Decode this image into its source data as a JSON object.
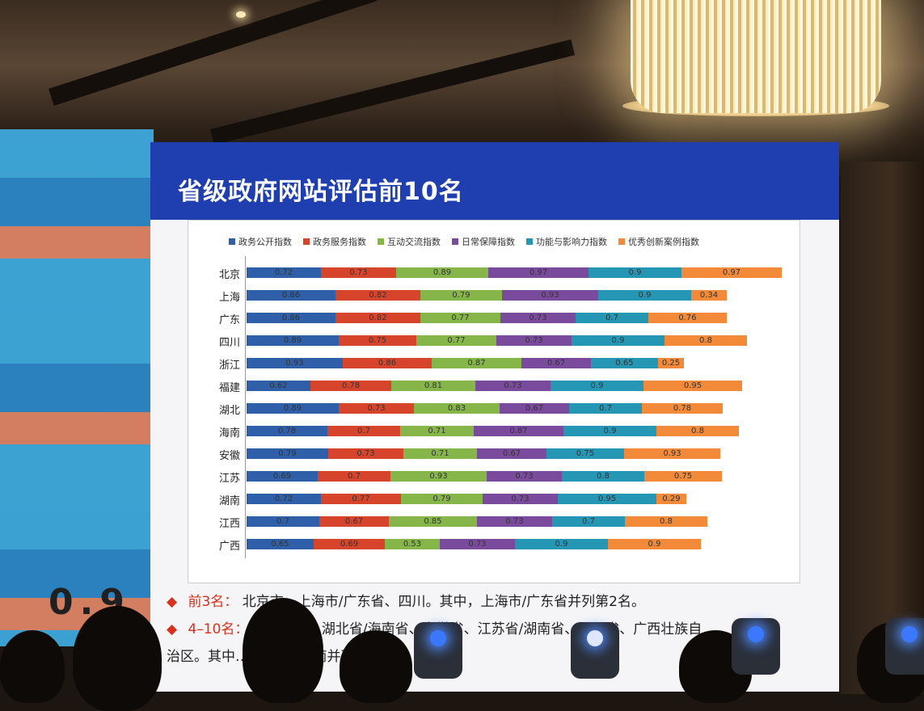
{
  "slide": {
    "title": "省级政府网站评估前10名",
    "bullets": [
      {
        "head": "前3名：",
        "text": "北京市、上海市/广东省、四川。其中，上海市/广东省并列第2名。"
      },
      {
        "head": "4–10名：",
        "text": "…福建省、湖北省/海南省、安徽省、江苏省/湖南省、江西省、广西壮族自"
      },
      {
        "head": "",
        "text": "治区。其中…/海…苏/湖南并列第8…"
      }
    ]
  },
  "left_screen": {
    "digits": "0.9"
  },
  "chart_data": {
    "type": "bar",
    "orientation": "horizontal",
    "stacked": true,
    "categories": [
      "北京",
      "上海",
      "广东",
      "四川",
      "浙江",
      "福建",
      "湖北",
      "海南",
      "安徽",
      "江苏",
      "湖南",
      "江西",
      "广西"
    ],
    "series": [
      {
        "name": "政务公开指数",
        "color": "#2e5fa8",
        "values": [
          0.72,
          0.86,
          0.86,
          0.89,
          0.93,
          0.62,
          0.89,
          0.78,
          0.79,
          0.69,
          0.72,
          0.7,
          0.65
        ]
      },
      {
        "name": "政务服务指数",
        "color": "#d6452b",
        "values": [
          0.73,
          0.82,
          0.82,
          0.75,
          0.86,
          0.78,
          0.73,
          0.7,
          0.73,
          0.7,
          0.77,
          0.67,
          0.69
        ]
      },
      {
        "name": "互动交流指数",
        "color": "#86b64a",
        "values": [
          0.89,
          0.79,
          0.77,
          0.77,
          0.87,
          0.81,
          0.83,
          0.71,
          0.71,
          0.93,
          0.79,
          0.85,
          0.53
        ]
      },
      {
        "name": "日常保障指数",
        "color": "#7a4a9c",
        "values": [
          0.97,
          0.93,
          0.73,
          0.73,
          0.67,
          0.73,
          0.67,
          0.87,
          0.67,
          0.73,
          0.73,
          0.73,
          0.73
        ]
      },
      {
        "name": "功能与影响力指数",
        "color": "#2596b4",
        "values": [
          0.9,
          0.9,
          0.7,
          0.9,
          0.65,
          0.9,
          0.7,
          0.9,
          0.75,
          0.8,
          0.95,
          0.7,
          0.9
        ]
      },
      {
        "name": "优秀创新案例指数",
        "color": "#f28a3a",
        "values": [
          0.97,
          0.34,
          0.76,
          0.8,
          0.25,
          0.95,
          0.78,
          0.8,
          0.93,
          0.75,
          0.29,
          0.8,
          0.9
        ]
      }
    ]
  }
}
